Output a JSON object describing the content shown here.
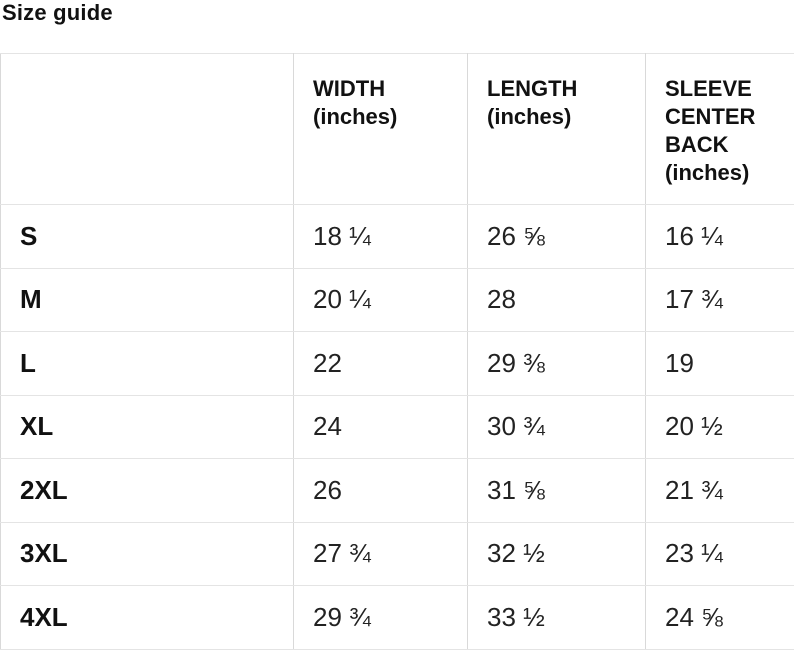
{
  "title": "Size guide",
  "size_table": {
    "headers": {
      "size": "",
      "width": "WIDTH\n(inches)",
      "length": "LENGTH\n(inches)",
      "sleeve": "SLEEVE\nCENTER\nBACK\n(inches)"
    },
    "rows": [
      {
        "size": "S",
        "width": "18 ¼",
        "length": "26 ⅝",
        "sleeve": "16 ¼"
      },
      {
        "size": "M",
        "width": "20 ¼",
        "length": "28",
        "sleeve": "17 ¾"
      },
      {
        "size": "L",
        "width": "22",
        "length": "29 ⅜",
        "sleeve": "19"
      },
      {
        "size": "XL",
        "width": "24",
        "length": "30 ¾",
        "sleeve": "20 ½"
      },
      {
        "size": "2XL",
        "width": "26",
        "length": "31 ⅝",
        "sleeve": "21 ¾"
      },
      {
        "size": "3XL",
        "width": "27 ¾",
        "length": "32 ½",
        "sleeve": "23 ¼"
      },
      {
        "size": "4XL",
        "width": "29 ¾",
        "length": "33 ½",
        "sleeve": "24 ⅝"
      }
    ]
  },
  "colors": {
    "background": "#ffffff",
    "text": "#222222",
    "heading_text": "#111111",
    "border_vertical": "#d9d9d9",
    "border_horizontal": "#e4e4e4"
  }
}
